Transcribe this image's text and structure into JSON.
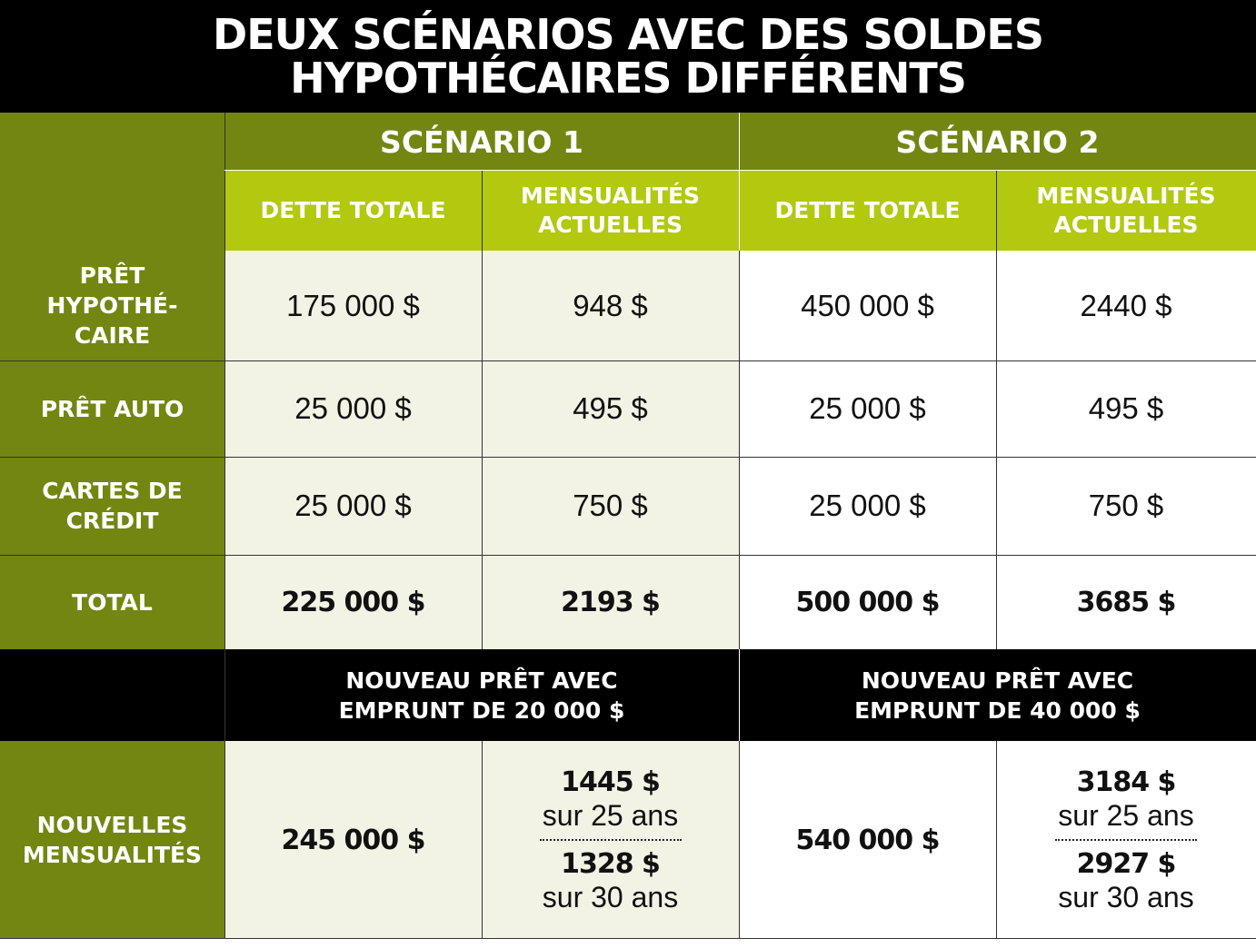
{
  "title": {
    "line1": "DEUX SCÉNARIOS AVEC DES SOLDES",
    "line2": "HYPOTHÉCAIRES DIFFÉRENTS"
  },
  "colors": {
    "olive": "#738611",
    "lime": "#b2c910",
    "cream": "#f2f3e4",
    "black": "#000000"
  },
  "scenarios": [
    {
      "label": "SCÉNARIO 1"
    },
    {
      "label": "SCÉNARIO 2"
    }
  ],
  "columns": {
    "dette_line1": "DETTE TOTALE",
    "mens_line1": "MENSUALITÉS",
    "mens_line2": "ACTUELLES"
  },
  "rows": [
    {
      "label_lines": [
        "PRÊT",
        "HYPOTHÉ-",
        "CAIRE"
      ],
      "s1_dette": "175 000 $",
      "s1_mens": "948 $",
      "s2_dette": "450 000 $",
      "s2_mens": "2440 $"
    },
    {
      "label_lines": [
        "PRÊT AUTO"
      ],
      "s1_dette": "25 000 $",
      "s1_mens": "495 $",
      "s2_dette": "25 000 $",
      "s2_mens": "495 $"
    },
    {
      "label_lines": [
        "CARTES DE",
        "CRÉDIT"
      ],
      "s1_dette": "25 000 $",
      "s1_mens": "750 $",
      "s2_dette": "25 000 $",
      "s2_mens": "750 $"
    },
    {
      "label_lines": [
        "TOTAL"
      ],
      "s1_dette": "225 000 $",
      "s1_mens": "2193 $",
      "s2_dette": "500 000 $",
      "s2_mens": "3685 $"
    }
  ],
  "new_loan": {
    "s1_line1": "NOUVEAU PRÊT AVEC",
    "s1_line2": "EMPRUNT DE 20 000 $",
    "s2_line1": "NOUVEAU PRÊT AVEC",
    "s2_line2": "EMPRUNT DE 40 000 $"
  },
  "new_payments": {
    "label_line1": "NOUVELLES",
    "label_line2": "MENSUALITÉS",
    "s1_dette": "245 000 $",
    "s1_amt25": "1445 $",
    "s1_term25": "sur 25 ans",
    "s1_amt30": "1328 $",
    "s1_term30": "sur 30 ans",
    "s2_dette": "540 000 $",
    "s2_amt25": "3184 $",
    "s2_term25": "sur 25 ans",
    "s2_amt30": "2927 $",
    "s2_term30": "sur 30 ans"
  }
}
